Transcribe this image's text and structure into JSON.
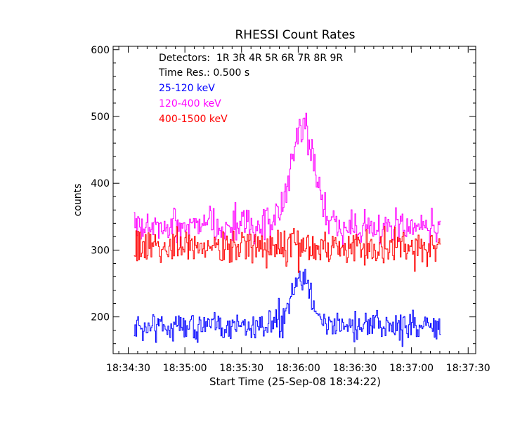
{
  "chart_data": {
    "type": "line",
    "title": "RHESSI Count Rates",
    "xlabel": "Start Time (25-Sep-08 18:34:22)",
    "ylabel": "counts",
    "x_start": "18:34:22",
    "x_range": [
      "18:34:22",
      "18:37:34"
    ],
    "ylim": [
      145,
      605
    ],
    "x_ticks": [
      "18:34:30",
      "18:35:00",
      "18:35:30",
      "18:36:00",
      "18:36:30",
      "18:37:00",
      "18:37:30"
    ],
    "y_ticks": [
      200,
      300,
      400,
      500,
      600
    ],
    "time_res_s": 0.5,
    "grid": false,
    "annotations": [
      "Detectors:  1R 3R 4R 5R 6R 7R 8R 9R",
      "Time Res.: 0.500 s"
    ],
    "series": [
      {
        "name": "25-120 keV",
        "color": "#0000ff",
        "x_start": "18:34:33",
        "x_end": "18:37:15",
        "baseline": 187,
        "noise": 18,
        "peak": {
          "time": "18:36:02",
          "value": 270,
          "width_s": 5
        }
      },
      {
        "name": "120-400 keV",
        "color": "#ff00ff",
        "x_start": "18:34:33",
        "x_end": "18:37:15",
        "baseline": 335,
        "noise": 22,
        "peak": {
          "time": "18:36:02",
          "value": 505,
          "width_s": 6
        }
      },
      {
        "name": "400-1500 keV",
        "color": "#ff0000",
        "x_start": "18:34:33",
        "x_end": "18:37:15",
        "baseline": 305,
        "noise": 22,
        "peak": null
      }
    ]
  }
}
